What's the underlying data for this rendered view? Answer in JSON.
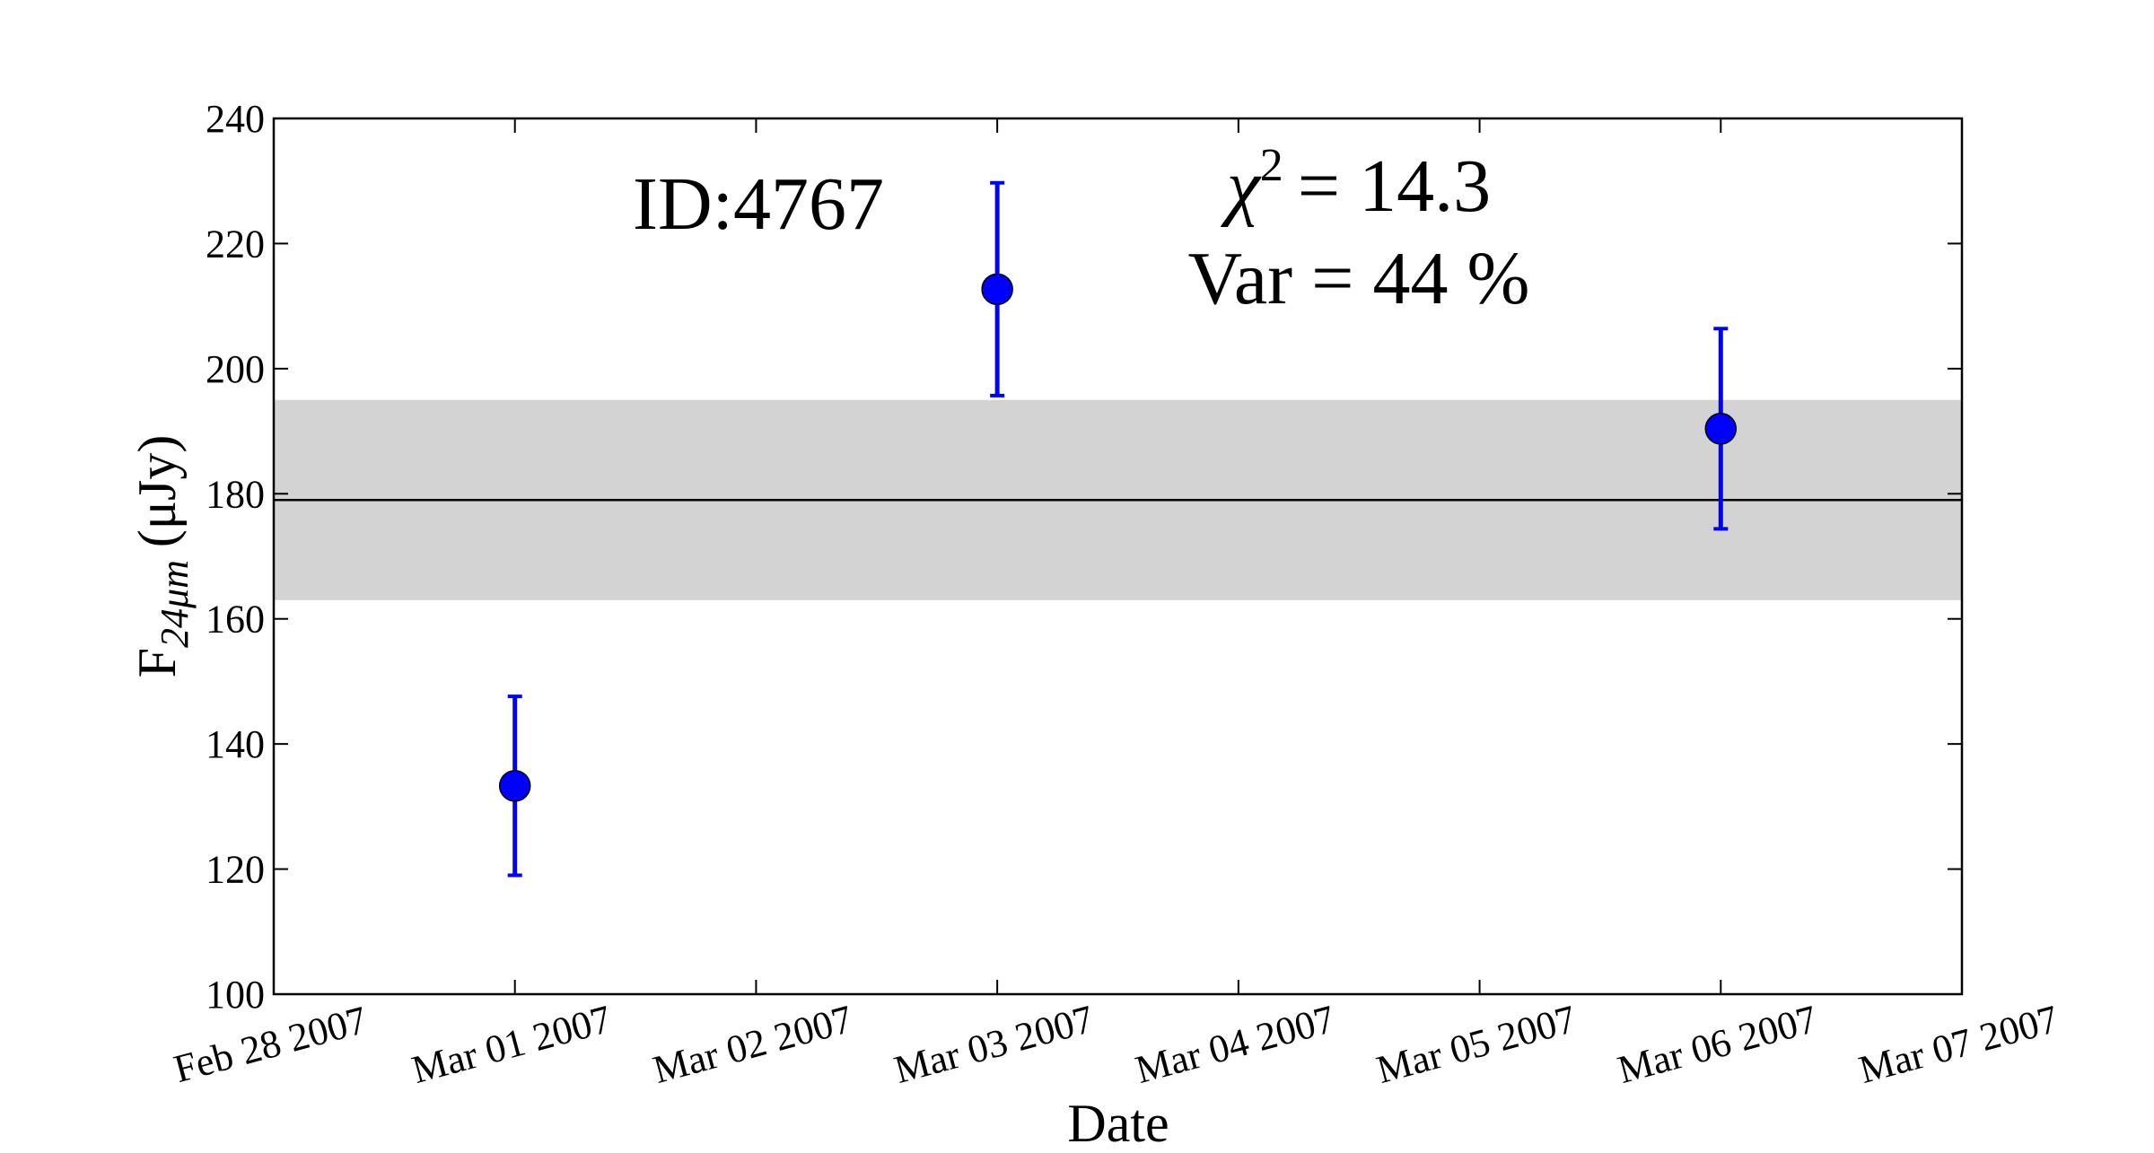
{
  "chart_data": {
    "type": "scatter",
    "x": [
      "2007-03-01",
      "2007-03-03",
      "2007-03-06"
    ],
    "series": [
      {
        "name": "ID:4767",
        "color": "#0000ff",
        "values": [
          133.3,
          212.7,
          190.4
        ],
        "errors": [
          14.3,
          17,
          16
        ]
      }
    ],
    "mean": 179,
    "band": [
      163,
      195
    ],
    "band_color": "#d3d3d3",
    "xlim": [
      "2007-02-28",
      "2007-03-07"
    ],
    "xticks": [
      {
        "value": "2007-02-28",
        "label": "Feb 28 2007"
      },
      {
        "value": "2007-03-01",
        "label": "Mar 01 2007"
      },
      {
        "value": "2007-03-02",
        "label": "Mar 02 2007"
      },
      {
        "value": "2007-03-03",
        "label": "Mar 03 2007"
      },
      {
        "value": "2007-03-04",
        "label": "Mar 04 2007"
      },
      {
        "value": "2007-03-05",
        "label": "Mar 05 2007"
      },
      {
        "value": "2007-03-06",
        "label": "Mar 06 2007"
      },
      {
        "value": "2007-03-07",
        "label": "Mar 07 2007"
      }
    ],
    "ylim": [
      100,
      240
    ],
    "yticks": [
      100,
      120,
      140,
      160,
      180,
      200,
      220,
      240
    ],
    "xlabel": "Date",
    "ylabel": {
      "main": "F",
      "sub": "24μm",
      "unit": "(μJy)"
    },
    "annotations": {
      "id": "ID:4767",
      "chi2": {
        "symbol": "χ",
        "power": "2",
        "rest": "= 14.3"
      },
      "var": "Var = 44 %"
    }
  }
}
